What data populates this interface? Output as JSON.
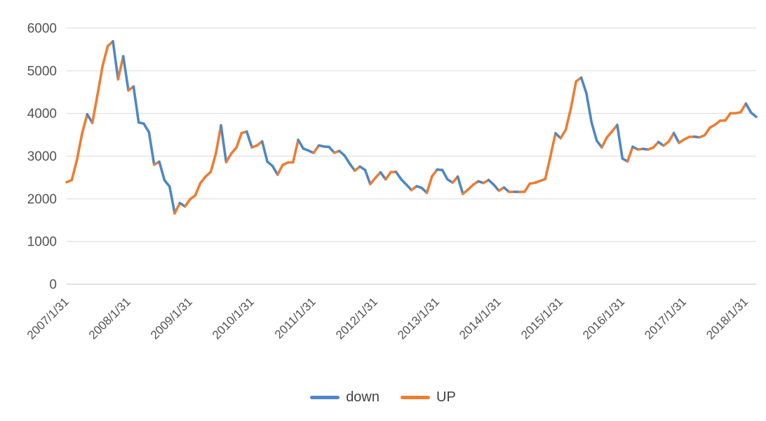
{
  "chart_data": {
    "type": "line",
    "title": "",
    "xlabel": "",
    "ylabel": "",
    "y_min": 0,
    "y_max": 6000,
    "y_tick_step": 1000,
    "y_tick_labels": [
      "0",
      "1000",
      "2000",
      "3000",
      "4000",
      "5000",
      "6000"
    ],
    "x_tick_labels": [
      "2007/1/31",
      "2008/1/31",
      "2009/1/31",
      "2010/1/31",
      "2011/1/31",
      "2012/1/31",
      "2013/1/31",
      "2014/1/31",
      "2015/1/31",
      "2016/1/31",
      "2017/1/31",
      "2018/1/31"
    ],
    "x_tick_every": 12,
    "frequency": "monthly",
    "grid": true,
    "legend_position": "bottom",
    "coloring_rule": "each month-over-month segment is drawn orange (UP) when the value rises and blue (down) when it falls",
    "series": [
      {
        "name": "down",
        "color": "#4E87C6"
      },
      {
        "name": "UP",
        "color": "#ED7D31"
      }
    ],
    "values": [
      2390,
      2440,
      2910,
      3530,
      3980,
      3780,
      4440,
      5120,
      5580,
      5690,
      4800,
      5340,
      4540,
      4630,
      3790,
      3760,
      3560,
      2800,
      2870,
      2440,
      2290,
      1660,
      1900,
      1820,
      1990,
      2080,
      2370,
      2520,
      2630,
      3060,
      3720,
      2860,
      3060,
      3200,
      3540,
      3575,
      3205,
      3250,
      3345,
      2870,
      2770,
      2565,
      2795,
      2850,
      2855,
      3380,
      3175,
      3130,
      3075,
      3250,
      3225,
      3215,
      3080,
      3120,
      3015,
      2825,
      2660,
      2755,
      2675,
      2345,
      2490,
      2620,
      2455,
      2625,
      2630,
      2460,
      2335,
      2205,
      2295,
      2255,
      2140,
      2525,
      2685,
      2675,
      2455,
      2380,
      2520,
      2115,
      2215,
      2330,
      2410,
      2370,
      2440,
      2330,
      2190,
      2265,
      2160,
      2165,
      2160,
      2165,
      2355,
      2375,
      2420,
      2460,
      2985,
      3535,
      3420,
      3620,
      4125,
      4750,
      4840,
      4475,
      3795,
      3365,
      3205,
      3440,
      3580,
      3730,
      2945,
      2875,
      3220,
      3155,
      3170,
      3155,
      3200,
      3330,
      3245,
      3340,
      3540,
      3310,
      3390,
      3450,
      3455,
      3440,
      3490,
      3665,
      3735,
      3830,
      3835,
      4005,
      4005,
      4030,
      4230,
      4020,
      3920
    ]
  },
  "colors": {
    "gridline": "#D9D9D9",
    "axis_line": "#C6C6C6",
    "tick_text": "#535353",
    "background": "#FFFFFF"
  }
}
